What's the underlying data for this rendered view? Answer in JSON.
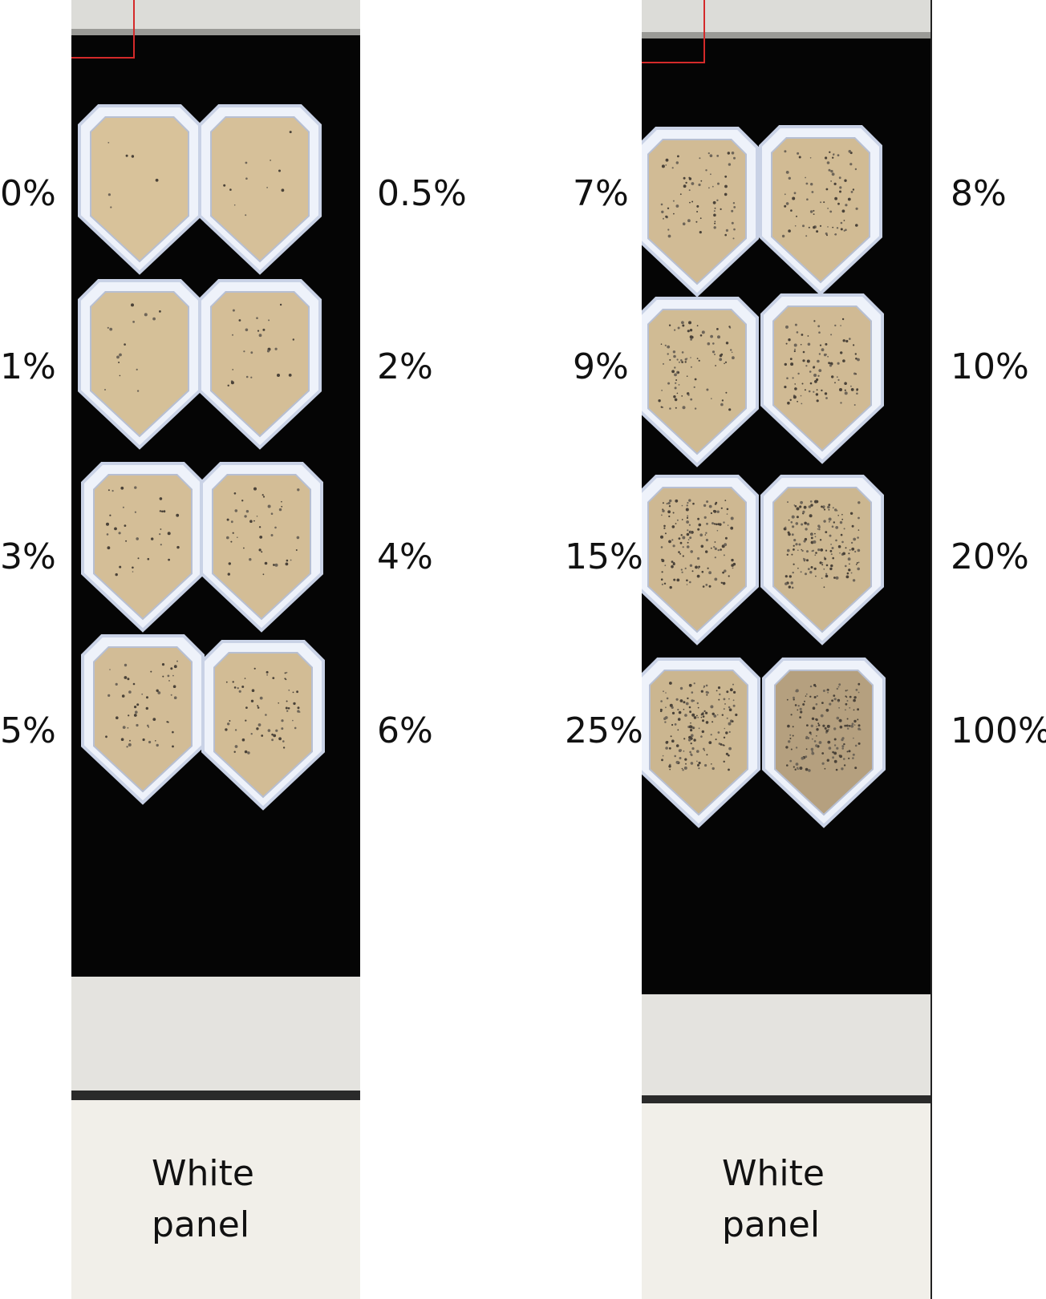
{
  "colors": {
    "background": "#ffffff",
    "board": "#050505",
    "tray": "#c9d2e6",
    "tray_edge": "#eef2fa",
    "sand": "#d8c29a",
    "sand_dark": "#a99576",
    "white_panel": "#f1efe9",
    "rail": "#e4e3df",
    "marker": "#d42a2a"
  },
  "left_board": {
    "samples": [
      {
        "label": "0%",
        "fraction": 0
      },
      {
        "label": "0.5%",
        "fraction": 0.005
      },
      {
        "label": "1%",
        "fraction": 0.01
      },
      {
        "label": "2%",
        "fraction": 0.02
      },
      {
        "label": "3%",
        "fraction": 0.03
      },
      {
        "label": "4%",
        "fraction": 0.04
      },
      {
        "label": "5%",
        "fraction": 0.05
      },
      {
        "label": "6%",
        "fraction": 0.06
      }
    ],
    "white_panel": {
      "line1": "White",
      "line2": "panel"
    }
  },
  "right_board": {
    "samples": [
      {
        "label": "7%",
        "fraction": 0.07
      },
      {
        "label": "8%",
        "fraction": 0.08
      },
      {
        "label": "9%",
        "fraction": 0.09
      },
      {
        "label": "10%",
        "fraction": 0.1
      },
      {
        "label": "15%",
        "fraction": 0.15
      },
      {
        "label": "20%",
        "fraction": 0.2
      },
      {
        "label": "25%",
        "fraction": 0.25
      },
      {
        "label": "100%",
        "fraction": 1.0
      }
    ],
    "white_panel": {
      "line1": "White",
      "line2": "panel"
    }
  }
}
